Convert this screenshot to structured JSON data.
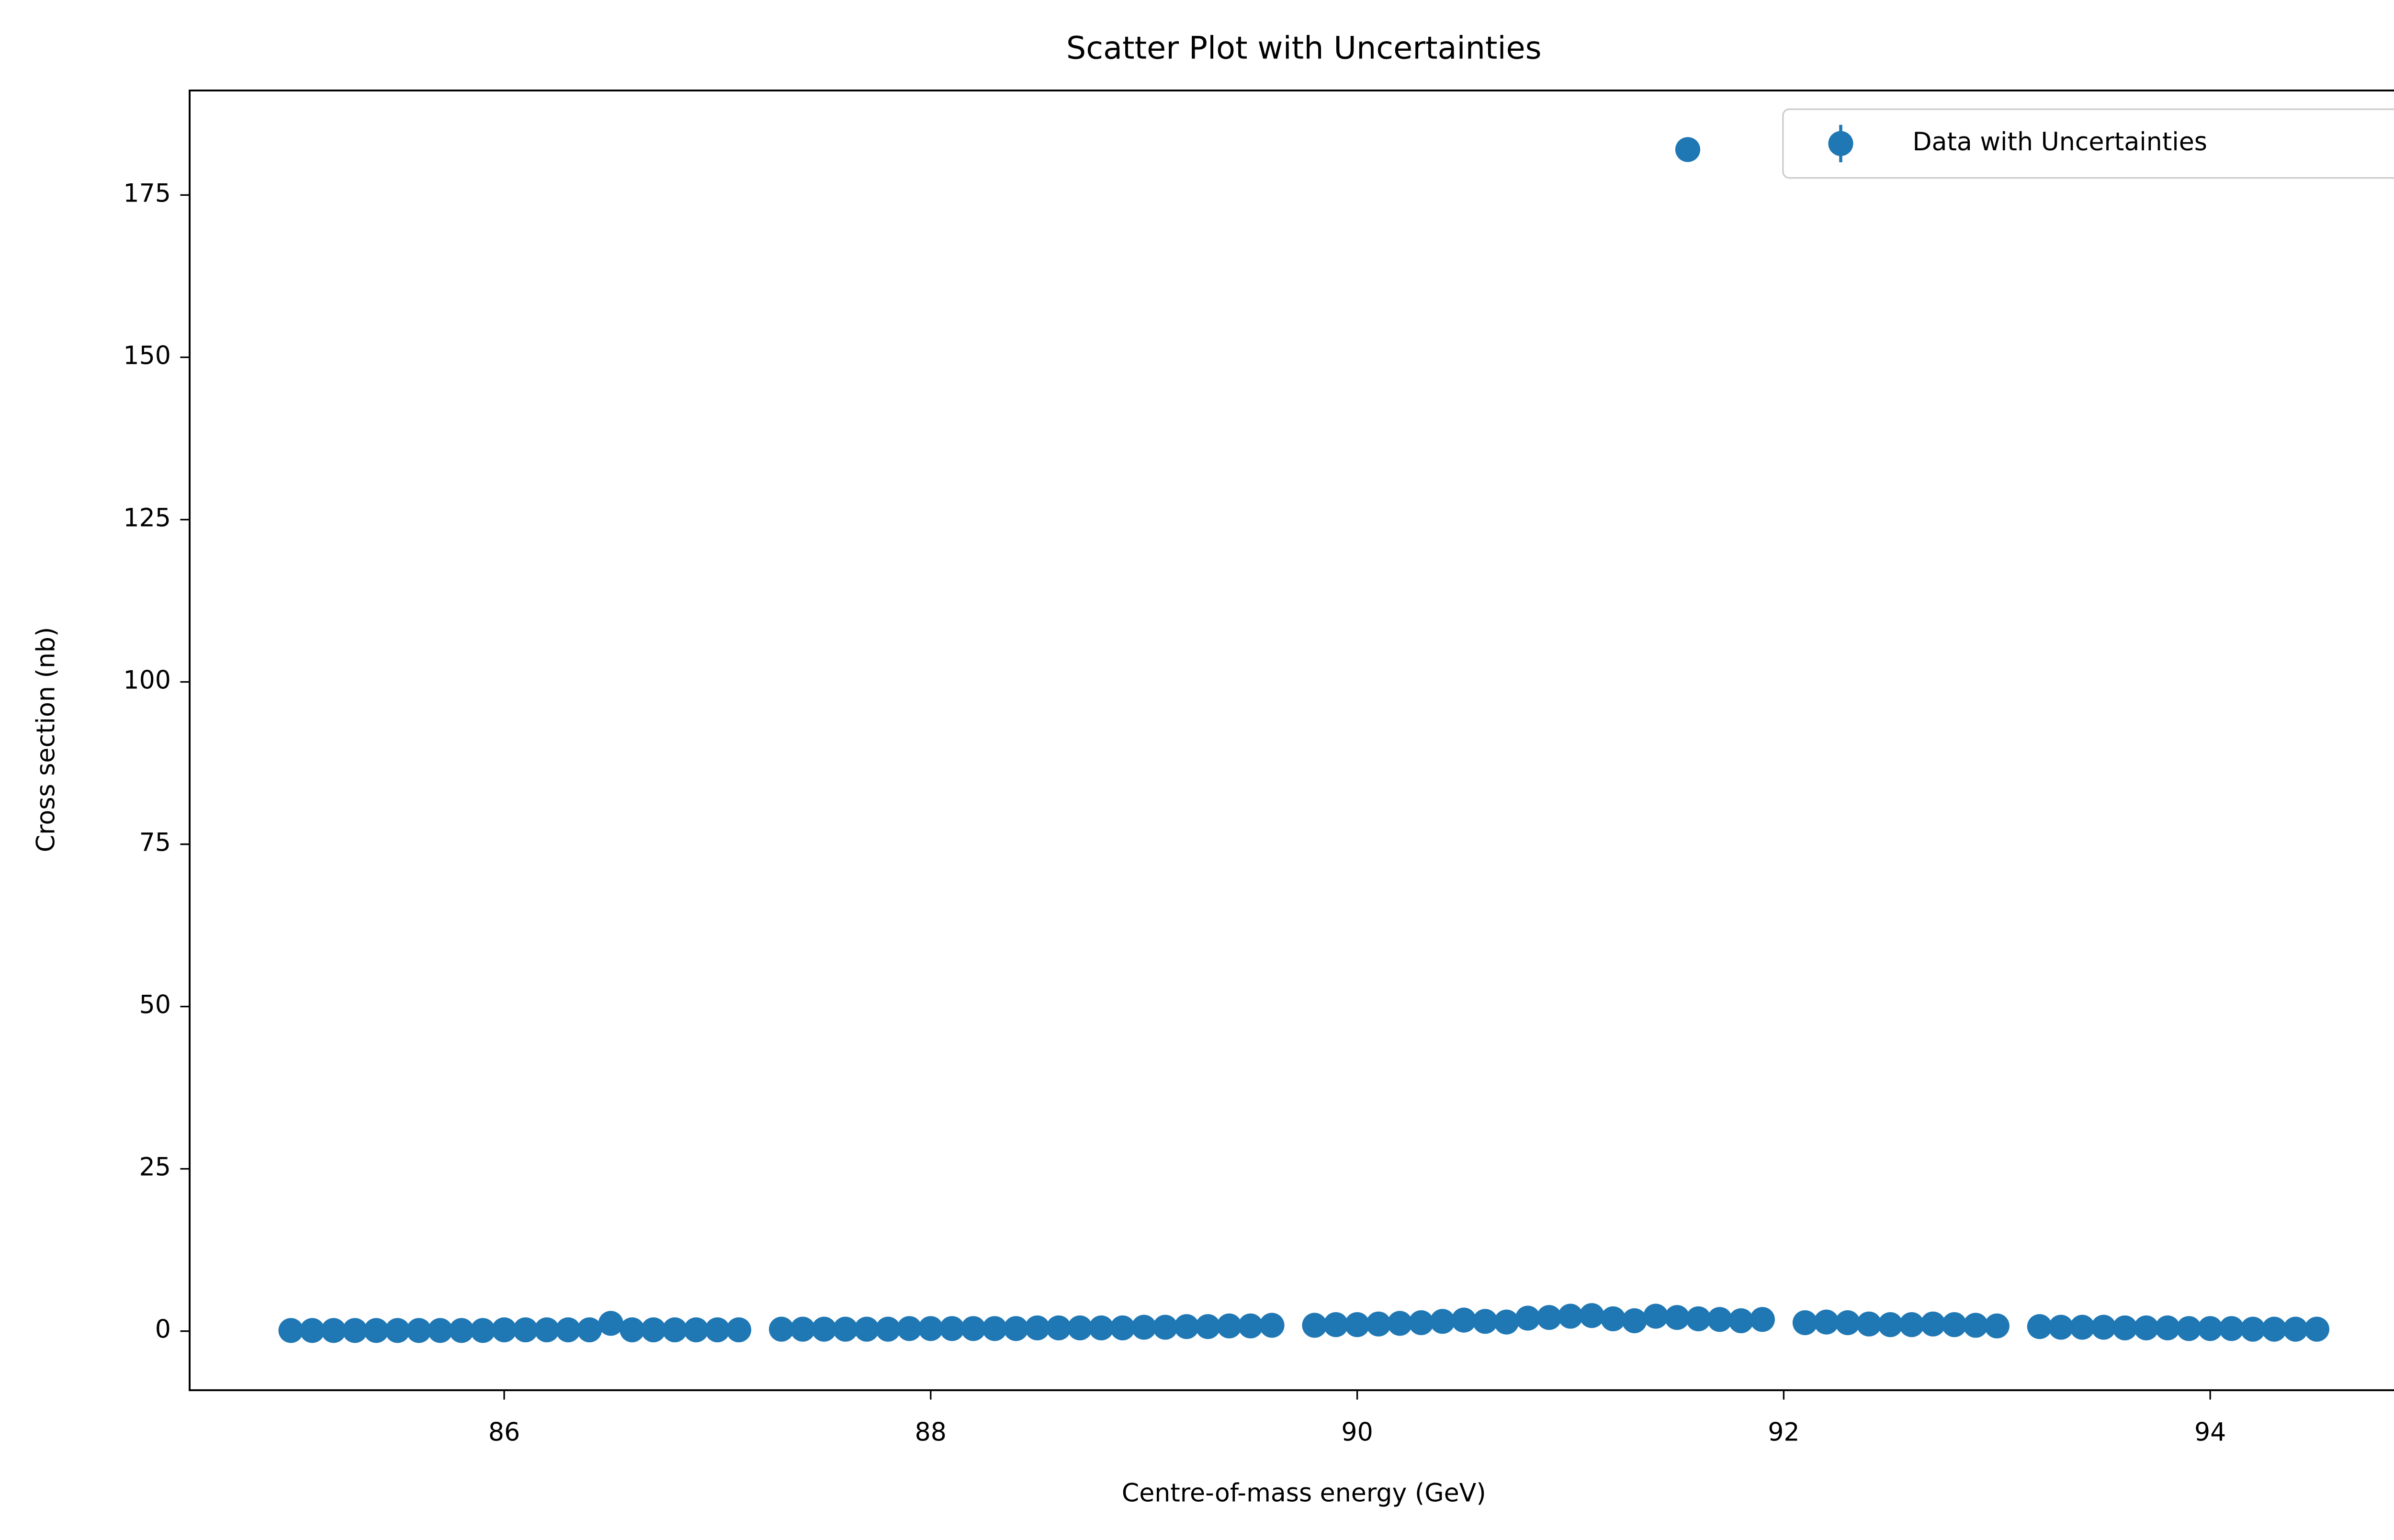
{
  "chart_data": {
    "type": "scatter",
    "title": "Scatter Plot with Uncertainties",
    "x_label": "Centre-of-mass energy (GeV)",
    "y_label": "Cross section (nb)",
    "series": [
      {
        "name": "Data with Uncertainties",
        "color": "#1f77b4",
        "x": [
          85.0,
          85.1,
          85.2,
          85.3,
          85.4,
          85.5,
          85.6,
          85.7,
          85.8,
          85.9,
          86.0,
          86.1,
          86.2,
          86.3,
          86.4,
          86.5,
          86.6,
          86.7,
          86.8,
          86.9,
          87.0,
          87.1,
          87.3,
          87.4,
          87.5,
          87.6,
          87.7,
          87.8,
          87.9,
          88.0,
          88.1,
          88.2,
          88.3,
          88.4,
          88.5,
          88.6,
          88.7,
          88.8,
          88.9,
          89.0,
          89.1,
          89.2,
          89.3,
          89.4,
          89.5,
          89.6,
          89.8,
          89.9,
          90.0,
          90.1,
          90.2,
          90.3,
          90.4,
          90.5,
          90.6,
          90.7,
          90.8,
          90.9,
          91.0,
          91.1,
          91.2,
          91.3,
          91.4,
          91.5,
          91.55,
          91.6,
          91.7,
          91.8,
          91.9,
          92.1,
          92.2,
          92.3,
          92.4,
          92.5,
          92.6,
          92.7,
          92.8,
          92.9,
          93.0,
          93.2,
          93.3,
          93.4,
          93.5,
          93.6,
          93.7,
          93.8,
          93.9,
          94.0,
          94.1,
          94.2,
          94.3,
          94.4,
          94.5
        ],
        "values": [
          0.1,
          0.1,
          0.1,
          0.1,
          0.1,
          0.1,
          0.1,
          0.1,
          0.1,
          0.1,
          0.2,
          0.2,
          0.2,
          0.2,
          0.2,
          1.2,
          0.2,
          0.2,
          0.2,
          0.2,
          0.2,
          0.2,
          0.3,
          0.3,
          0.3,
          0.3,
          0.3,
          0.3,
          0.4,
          0.4,
          0.4,
          0.4,
          0.4,
          0.4,
          0.5,
          0.5,
          0.5,
          0.5,
          0.5,
          0.6,
          0.6,
          0.7,
          0.7,
          0.8,
          0.8,
          0.9,
          0.9,
          1.0,
          1.0,
          1.1,
          1.2,
          1.3,
          1.5,
          1.7,
          1.5,
          1.4,
          2.0,
          2.1,
          2.3,
          2.4,
          1.9,
          1.6,
          2.3,
          2.1,
          182,
          1.9,
          1.8,
          1.6,
          1.8,
          1.3,
          1.4,
          1.3,
          1.1,
          1.0,
          1.0,
          1.1,
          1.0,
          0.9,
          0.8,
          0.7,
          0.6,
          0.6,
          0.6,
          0.5,
          0.5,
          0.5,
          0.4,
          0.4,
          0.4,
          0.3,
          0.3,
          0.3,
          0.3
        ]
      }
    ],
    "xlim": [
      84.525,
      94.975
    ],
    "ylim": [
      -9.1,
      191.1
    ],
    "xticks": [
      86,
      88,
      90,
      92,
      94
    ],
    "yticks": [
      0,
      25,
      50,
      75,
      100,
      125,
      150,
      175
    ],
    "legend": "upper right",
    "grid": false
  }
}
